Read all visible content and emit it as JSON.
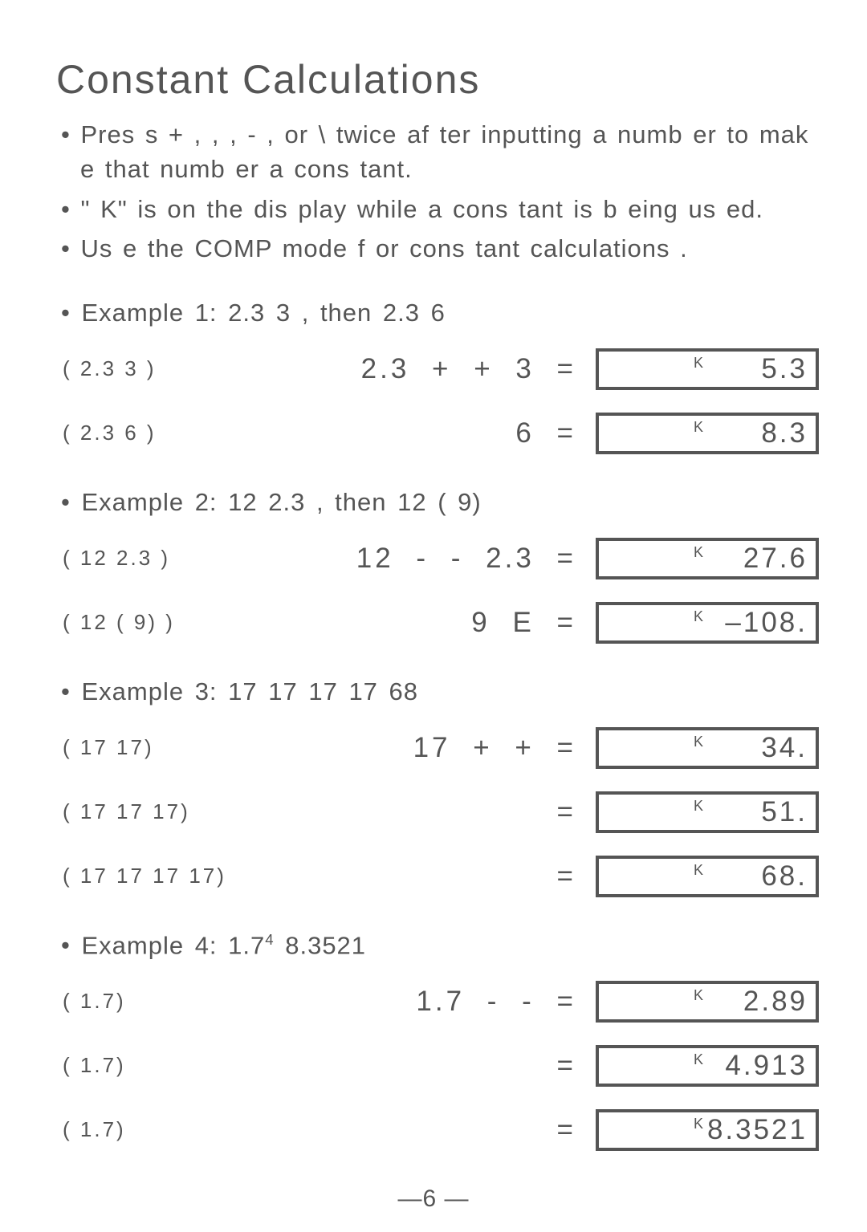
{
  "title": "Constant  Calculations",
  "bullets": [
    "Pres s +   , ,     , -    , or \\    twice af ter inputting  a numb er to mak e that numb er a cons tant.",
    "\" K\"  is  on the dis play  while a cons tant is  b eing  us ed.",
    "Us e the COMP mode f or cons tant calculations ."
  ],
  "examples": [
    {
      "label": "Example 1:   2.3   3 , then 2.3   6",
      "rows": [
        {
          "paren": "( 2.3 3 )",
          "keys": "2.3 +   + 3 =",
          "k": "K",
          "val": "5.3"
        },
        {
          "paren": "( 2.3 6 )",
          "keys": "6 =",
          "k": "K",
          "val": "8.3"
        }
      ]
    },
    {
      "label": "Example 2:  12   2.3 , then 12   (   9)",
      "rows": [
        {
          "paren": "( 12 2.3 )",
          "keys": "12 -   - 2.3 =",
          "k": "K",
          "val": "27.6"
        },
        {
          "paren": "( 12 ( 9) )",
          "keys": "9 E  =",
          "k": "K",
          "val": "–108."
        }
      ]
    },
    {
      "label": "Example 3:   17   17   17   17   68",
      "rows": [
        {
          "paren": "( 17 17)",
          "keys": "17 +   + =",
          "k": "K",
          "val": "34."
        },
        {
          "paren": "( 17 17  17)",
          "keys": "=",
          "k": "K",
          "val": "51."
        },
        {
          "paren": "( 17 17  17  17)",
          "keys": "=",
          "k": "K",
          "val": "68."
        }
      ]
    },
    {
      "label_html": "Example 4:   1.7<span class=\"sup\">4</span>   8.3521",
      "rows": [
        {
          "paren": "( 1.7)",
          "keys": "1.7 -   - =",
          "k": "K",
          "val": "2.89"
        },
        {
          "paren": "( 1.7)",
          "keys": "=",
          "k": "K",
          "val": "4.913"
        },
        {
          "paren": "( 1.7)",
          "keys": "=",
          "k": "K",
          "val": "8.3521"
        }
      ]
    }
  ],
  "page_number": "—6 —",
  "colors": {
    "text": "#555555",
    "border": "#555555",
    "bg": "#ffffff"
  }
}
